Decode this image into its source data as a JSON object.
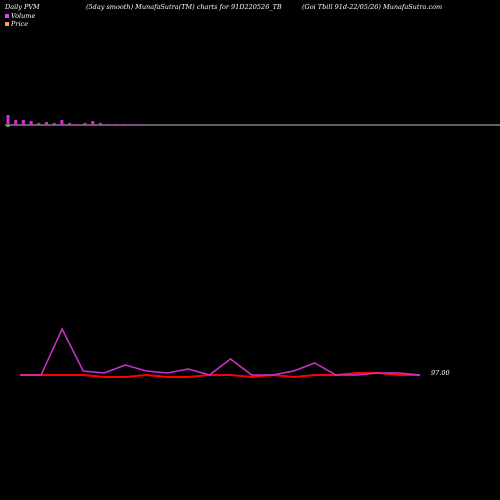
{
  "header": {
    "left": "Daily PVM",
    "middle": "(5day smooth) MunafaSutra(TM) charts for 91D220526_TB",
    "right": "(Goi Tbill 91d-22/05/26) MunafaSutra.com"
  },
  "legend": [
    {
      "label": "Volume",
      "color": "#e040fb"
    },
    {
      "label": "Price",
      "color": "#ff9966"
    }
  ],
  "colors": {
    "volume_bar": "#cc33cc",
    "volume_bar_last": "#33cc33",
    "price_line": "#ff0000",
    "volume_line": "#cc33cc",
    "baseline": "#ffffff"
  },
  "chart_data": [
    {
      "type": "bar",
      "name": "volume-bars",
      "values": [
        10,
        5,
        5,
        4,
        2,
        3,
        2,
        5,
        2,
        1,
        2,
        4,
        2,
        1,
        1,
        1,
        1,
        1
      ]
    },
    {
      "type": "line",
      "name": "pvm-lines",
      "price_label": "97.00",
      "series": [
        {
          "name": "Price",
          "values": [
            0,
            0,
            0,
            0,
            -1,
            -1,
            0,
            -1,
            -1,
            0,
            0,
            -1,
            0,
            -1,
            0,
            0,
            1,
            1,
            0,
            0
          ]
        },
        {
          "name": "Volume",
          "values": [
            0,
            0,
            23,
            2,
            1,
            5,
            2,
            1,
            3,
            0,
            8,
            0,
            0,
            2,
            6,
            0,
            0,
            1,
            1,
            0
          ]
        }
      ]
    }
  ]
}
